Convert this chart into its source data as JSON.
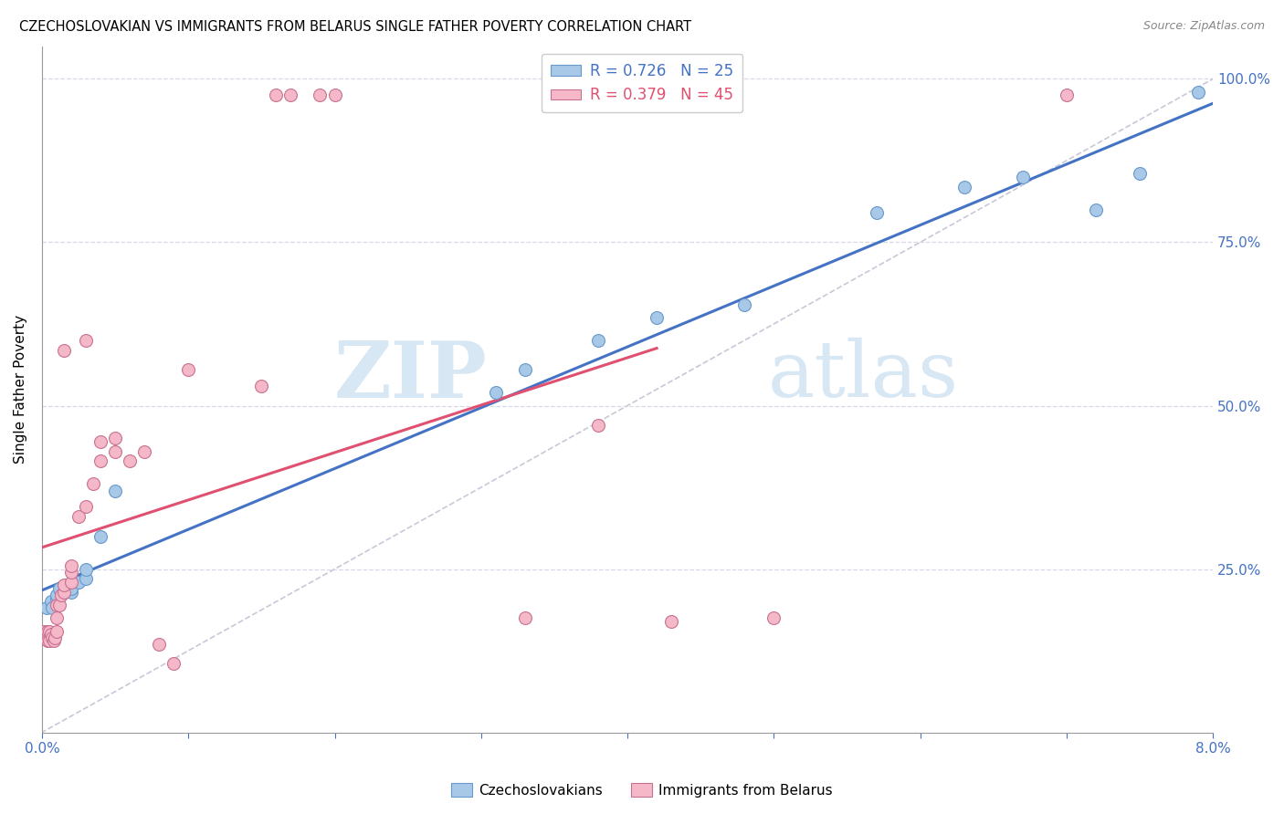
{
  "title": "CZECHOSLOVAKIAN VS IMMIGRANTS FROM BELARUS SINGLE FATHER POVERTY CORRELATION CHART",
  "source": "Source: ZipAtlas.com",
  "ylabel": "Single Father Poverty",
  "legend_top": [
    {
      "label": "R = 0.726   N = 25",
      "color": "#a8c8e8"
    },
    {
      "label": "R = 0.379   N = 45",
      "color": "#f4b8c8"
    }
  ],
  "legend_labels_bottom": [
    "Czechoslovakians",
    "Immigrants from Belarus"
  ],
  "czech_color": "#a8c8e8",
  "belarus_color": "#f4b8c8",
  "trend_czech_color": "#4472c4",
  "trend_belarus_color": "#e05070",
  "watermark_zip": "ZIP",
  "watermark_atlas": "atlas",
  "xlim": [
    0.0,
    0.08
  ],
  "ylim": [
    0.0,
    1.05
  ],
  "czech_x": [
    0.0003,
    0.0006,
    0.0007,
    0.001,
    0.001,
    0.0012,
    0.0015,
    0.002,
    0.002,
    0.0025,
    0.003,
    0.003,
    0.004,
    0.005,
    0.031,
    0.033,
    0.038,
    0.042,
    0.048,
    0.057,
    0.063,
    0.067,
    0.072,
    0.075,
    0.079
  ],
  "czech_y": [
    0.19,
    0.2,
    0.19,
    0.205,
    0.21,
    0.22,
    0.215,
    0.215,
    0.22,
    0.23,
    0.235,
    0.25,
    0.3,
    0.37,
    0.52,
    0.555,
    0.6,
    0.635,
    0.655,
    0.795,
    0.835,
    0.85,
    0.8,
    0.855,
    0.98
  ],
  "belarus_x": [
    0.0001,
    0.0002,
    0.0003,
    0.0004,
    0.0004,
    0.0005,
    0.0005,
    0.0006,
    0.0007,
    0.0008,
    0.0009,
    0.001,
    0.001,
    0.001,
    0.0012,
    0.0013,
    0.0015,
    0.0015,
    0.002,
    0.002,
    0.002,
    0.0025,
    0.003,
    0.0035,
    0.004,
    0.004,
    0.005,
    0.005,
    0.006,
    0.007,
    0.008,
    0.009,
    0.01,
    0.015,
    0.016,
    0.017,
    0.019,
    0.02,
    0.033,
    0.038,
    0.043,
    0.05,
    0.07,
    0.0015,
    0.003
  ],
  "belarus_y": [
    0.155,
    0.145,
    0.145,
    0.14,
    0.155,
    0.14,
    0.155,
    0.15,
    0.145,
    0.14,
    0.145,
    0.155,
    0.175,
    0.195,
    0.195,
    0.21,
    0.215,
    0.225,
    0.23,
    0.245,
    0.255,
    0.33,
    0.345,
    0.38,
    0.415,
    0.445,
    0.43,
    0.45,
    0.415,
    0.43,
    0.135,
    0.105,
    0.555,
    0.53,
    0.975,
    0.975,
    0.975,
    0.975,
    0.175,
    0.47,
    0.17,
    0.175,
    0.975,
    0.585,
    0.6
  ]
}
